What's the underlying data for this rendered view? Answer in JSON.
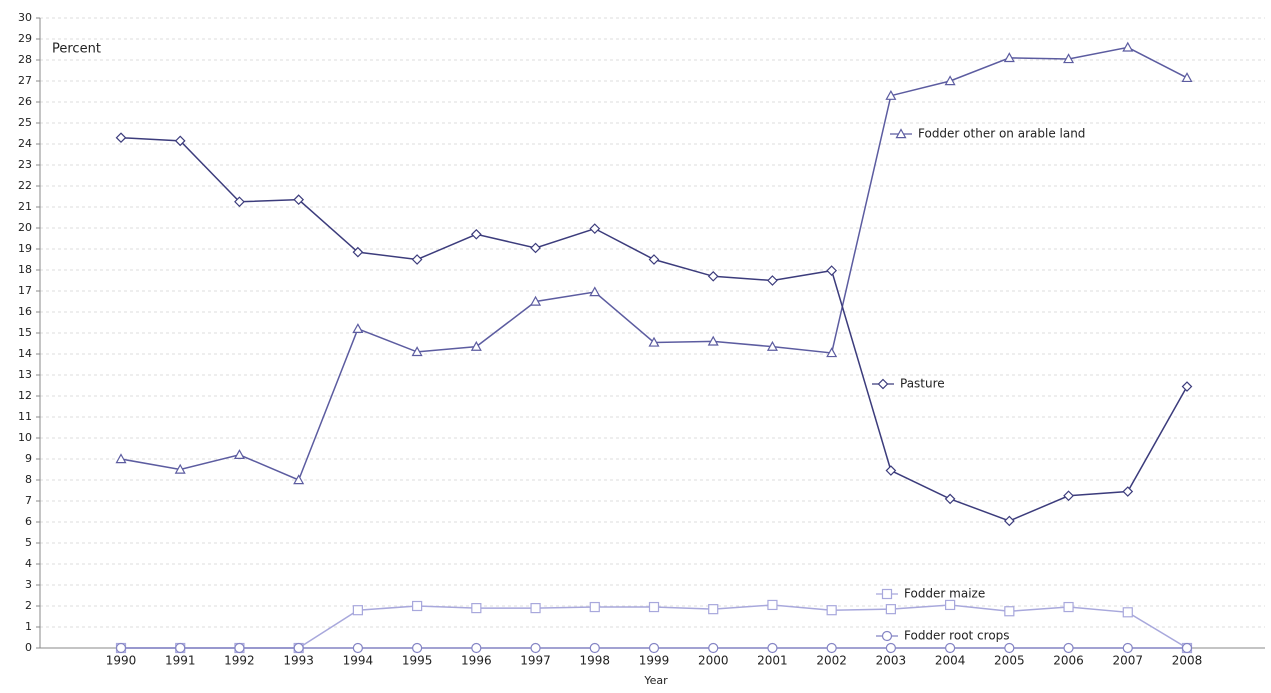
{
  "chart_data": {
    "type": "line",
    "y_label": "Percent",
    "x_label": "Year",
    "categories": [
      "1990",
      "1991",
      "1992",
      "1993",
      "1994",
      "1995",
      "1996",
      "1997",
      "1998",
      "1999",
      "2000",
      "2001",
      "2002",
      "2003",
      "2004",
      "2005",
      "2006",
      "2007",
      "2008"
    ],
    "series": [
      {
        "name": "Fodder other on arable land",
        "color": "#5c5ca0",
        "marker": "triangle",
        "values": [
          9.0,
          8.5,
          9.2,
          8.0,
          15.2,
          14.1,
          14.35,
          16.5,
          16.95,
          14.55,
          14.6,
          14.35,
          14.05,
          26.3,
          27.0,
          28.1,
          28.05,
          28.6,
          27.15
        ]
      },
      {
        "name": "Pasture",
        "color": "#3c3c7c",
        "marker": "diamond",
        "values": [
          24.3,
          24.15,
          21.25,
          21.35,
          18.85,
          18.5,
          19.7,
          19.05,
          19.97,
          18.5,
          17.7,
          17.5,
          17.97,
          8.45,
          7.1,
          6.05,
          7.25,
          7.45,
          12.45
        ]
      },
      {
        "name": "Fodder maize",
        "color": "#a8a8dc",
        "marker": "square",
        "values": [
          0,
          0,
          0,
          0,
          1.8,
          2.0,
          1.9,
          1.9,
          1.95,
          1.95,
          1.85,
          2.05,
          1.8,
          1.85,
          2.05,
          1.75,
          1.95,
          1.7,
          0
        ]
      },
      {
        "name": "Fodder root crops",
        "color": "#8484c4",
        "marker": "circle",
        "values": [
          0,
          0,
          0,
          0,
          0,
          0,
          0,
          0,
          0,
          0,
          0,
          0,
          0,
          0,
          0,
          0,
          0,
          0,
          0
        ]
      }
    ],
    "ylim": [
      0,
      30
    ],
    "yticks": [
      0,
      1,
      2,
      3,
      4,
      5,
      6,
      7,
      8,
      9,
      10,
      11,
      12,
      13,
      14,
      15,
      16,
      17,
      18,
      19,
      20,
      21,
      22,
      23,
      24,
      25,
      26,
      27,
      28,
      29,
      30
    ],
    "grid": true
  }
}
